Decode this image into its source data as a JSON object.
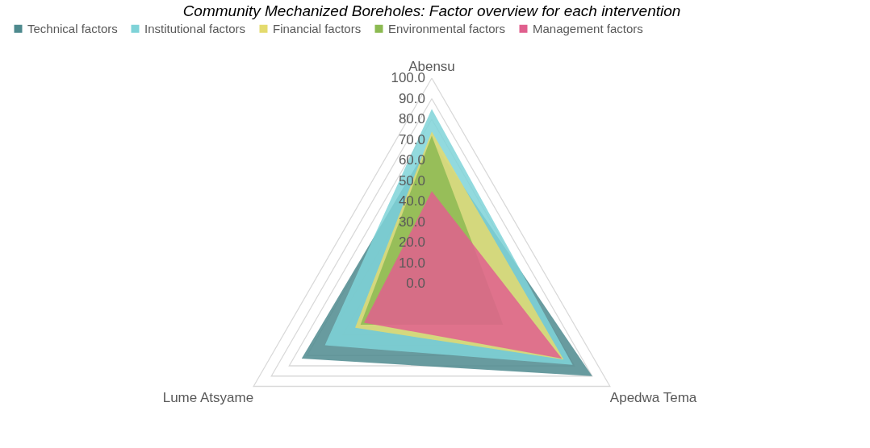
{
  "chart_data": {
    "type": "radar",
    "title": "Community Mechanized Boreholes: Factor overview for each intervention",
    "categories": [
      "Abensu",
      "Apedwa Tema",
      "Lume Atsyame"
    ],
    "series": [
      {
        "name": "Technical factors",
        "color": "#4e8a8e",
        "values": [
          70,
          90,
          73
        ]
      },
      {
        "name": "Institutional factors",
        "color": "#7fd3d8",
        "values": [
          85,
          79,
          60
        ]
      },
      {
        "name": "Financial factors",
        "color": "#e4db6e",
        "values": [
          74,
          74,
          43
        ]
      },
      {
        "name": "Environmental factors",
        "color": "#8cba52",
        "values": [
          72,
          40,
          40
        ]
      },
      {
        "name": "Management factors",
        "color": "#e0608e",
        "values": [
          45,
          73,
          38
        ]
      }
    ],
    "ylim": [
      0,
      100
    ],
    "yticks": [
      {
        "value": 0,
        "label": "0.0"
      },
      {
        "value": 10,
        "label": "10.0"
      },
      {
        "value": 20,
        "label": "20.0"
      },
      {
        "value": 30,
        "label": "30.0"
      },
      {
        "value": 40,
        "label": "40.0"
      },
      {
        "value": 50,
        "label": "50.0"
      },
      {
        "value": 60,
        "label": "60.0"
      },
      {
        "value": 70,
        "label": "70.0"
      },
      {
        "value": 80,
        "label": "80.0"
      },
      {
        "value": 90,
        "label": "90.0"
      },
      {
        "value": 100,
        "label": "100.0"
      }
    ],
    "grid": true,
    "legend": "top"
  }
}
